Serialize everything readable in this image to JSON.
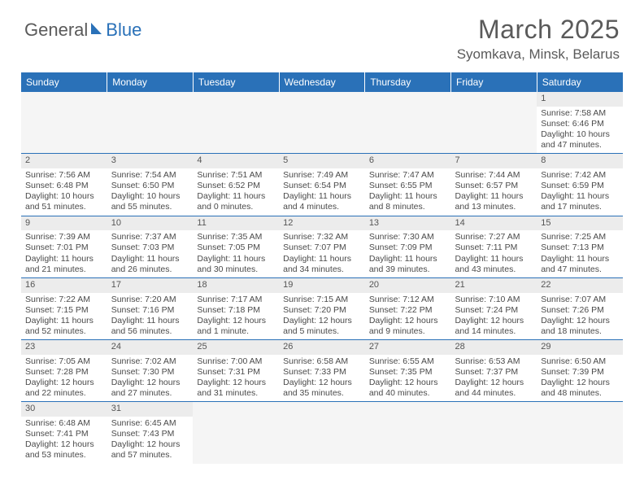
{
  "logo": {
    "text_general": "General",
    "text_blue": "Blue"
  },
  "title": "March 2025",
  "location": "Syomkava, Minsk, Belarus",
  "colors": {
    "header_bg": "#2a71b8",
    "header_text": "#ffffff",
    "border": "#2a71b8",
    "daynum_bg": "#ececec",
    "body_text": "#4a4a4a",
    "title_text": "#5a5a5a"
  },
  "day_labels": [
    "Sunday",
    "Monday",
    "Tuesday",
    "Wednesday",
    "Thursday",
    "Friday",
    "Saturday"
  ],
  "weeks": [
    [
      null,
      null,
      null,
      null,
      null,
      null,
      {
        "n": "1",
        "sr": "Sunrise: 7:58 AM",
        "ss": "Sunset: 6:46 PM",
        "dl": "Daylight: 10 hours and 47 minutes."
      }
    ],
    [
      {
        "n": "2",
        "sr": "Sunrise: 7:56 AM",
        "ss": "Sunset: 6:48 PM",
        "dl": "Daylight: 10 hours and 51 minutes."
      },
      {
        "n": "3",
        "sr": "Sunrise: 7:54 AM",
        "ss": "Sunset: 6:50 PM",
        "dl": "Daylight: 10 hours and 55 minutes."
      },
      {
        "n": "4",
        "sr": "Sunrise: 7:51 AM",
        "ss": "Sunset: 6:52 PM",
        "dl": "Daylight: 11 hours and 0 minutes."
      },
      {
        "n": "5",
        "sr": "Sunrise: 7:49 AM",
        "ss": "Sunset: 6:54 PM",
        "dl": "Daylight: 11 hours and 4 minutes."
      },
      {
        "n": "6",
        "sr": "Sunrise: 7:47 AM",
        "ss": "Sunset: 6:55 PM",
        "dl": "Daylight: 11 hours and 8 minutes."
      },
      {
        "n": "7",
        "sr": "Sunrise: 7:44 AM",
        "ss": "Sunset: 6:57 PM",
        "dl": "Daylight: 11 hours and 13 minutes."
      },
      {
        "n": "8",
        "sr": "Sunrise: 7:42 AM",
        "ss": "Sunset: 6:59 PM",
        "dl": "Daylight: 11 hours and 17 minutes."
      }
    ],
    [
      {
        "n": "9",
        "sr": "Sunrise: 7:39 AM",
        "ss": "Sunset: 7:01 PM",
        "dl": "Daylight: 11 hours and 21 minutes."
      },
      {
        "n": "10",
        "sr": "Sunrise: 7:37 AM",
        "ss": "Sunset: 7:03 PM",
        "dl": "Daylight: 11 hours and 26 minutes."
      },
      {
        "n": "11",
        "sr": "Sunrise: 7:35 AM",
        "ss": "Sunset: 7:05 PM",
        "dl": "Daylight: 11 hours and 30 minutes."
      },
      {
        "n": "12",
        "sr": "Sunrise: 7:32 AM",
        "ss": "Sunset: 7:07 PM",
        "dl": "Daylight: 11 hours and 34 minutes."
      },
      {
        "n": "13",
        "sr": "Sunrise: 7:30 AM",
        "ss": "Sunset: 7:09 PM",
        "dl": "Daylight: 11 hours and 39 minutes."
      },
      {
        "n": "14",
        "sr": "Sunrise: 7:27 AM",
        "ss": "Sunset: 7:11 PM",
        "dl": "Daylight: 11 hours and 43 minutes."
      },
      {
        "n": "15",
        "sr": "Sunrise: 7:25 AM",
        "ss": "Sunset: 7:13 PM",
        "dl": "Daylight: 11 hours and 47 minutes."
      }
    ],
    [
      {
        "n": "16",
        "sr": "Sunrise: 7:22 AM",
        "ss": "Sunset: 7:15 PM",
        "dl": "Daylight: 11 hours and 52 minutes."
      },
      {
        "n": "17",
        "sr": "Sunrise: 7:20 AM",
        "ss": "Sunset: 7:16 PM",
        "dl": "Daylight: 11 hours and 56 minutes."
      },
      {
        "n": "18",
        "sr": "Sunrise: 7:17 AM",
        "ss": "Sunset: 7:18 PM",
        "dl": "Daylight: 12 hours and 1 minute."
      },
      {
        "n": "19",
        "sr": "Sunrise: 7:15 AM",
        "ss": "Sunset: 7:20 PM",
        "dl": "Daylight: 12 hours and 5 minutes."
      },
      {
        "n": "20",
        "sr": "Sunrise: 7:12 AM",
        "ss": "Sunset: 7:22 PM",
        "dl": "Daylight: 12 hours and 9 minutes."
      },
      {
        "n": "21",
        "sr": "Sunrise: 7:10 AM",
        "ss": "Sunset: 7:24 PM",
        "dl": "Daylight: 12 hours and 14 minutes."
      },
      {
        "n": "22",
        "sr": "Sunrise: 7:07 AM",
        "ss": "Sunset: 7:26 PM",
        "dl": "Daylight: 12 hours and 18 minutes."
      }
    ],
    [
      {
        "n": "23",
        "sr": "Sunrise: 7:05 AM",
        "ss": "Sunset: 7:28 PM",
        "dl": "Daylight: 12 hours and 22 minutes."
      },
      {
        "n": "24",
        "sr": "Sunrise: 7:02 AM",
        "ss": "Sunset: 7:30 PM",
        "dl": "Daylight: 12 hours and 27 minutes."
      },
      {
        "n": "25",
        "sr": "Sunrise: 7:00 AM",
        "ss": "Sunset: 7:31 PM",
        "dl": "Daylight: 12 hours and 31 minutes."
      },
      {
        "n": "26",
        "sr": "Sunrise: 6:58 AM",
        "ss": "Sunset: 7:33 PM",
        "dl": "Daylight: 12 hours and 35 minutes."
      },
      {
        "n": "27",
        "sr": "Sunrise: 6:55 AM",
        "ss": "Sunset: 7:35 PM",
        "dl": "Daylight: 12 hours and 40 minutes."
      },
      {
        "n": "28",
        "sr": "Sunrise: 6:53 AM",
        "ss": "Sunset: 7:37 PM",
        "dl": "Daylight: 12 hours and 44 minutes."
      },
      {
        "n": "29",
        "sr": "Sunrise: 6:50 AM",
        "ss": "Sunset: 7:39 PM",
        "dl": "Daylight: 12 hours and 48 minutes."
      }
    ],
    [
      {
        "n": "30",
        "sr": "Sunrise: 6:48 AM",
        "ss": "Sunset: 7:41 PM",
        "dl": "Daylight: 12 hours and 53 minutes."
      },
      {
        "n": "31",
        "sr": "Sunrise: 6:45 AM",
        "ss": "Sunset: 7:43 PM",
        "dl": "Daylight: 12 hours and 57 minutes."
      },
      null,
      null,
      null,
      null,
      null
    ]
  ]
}
